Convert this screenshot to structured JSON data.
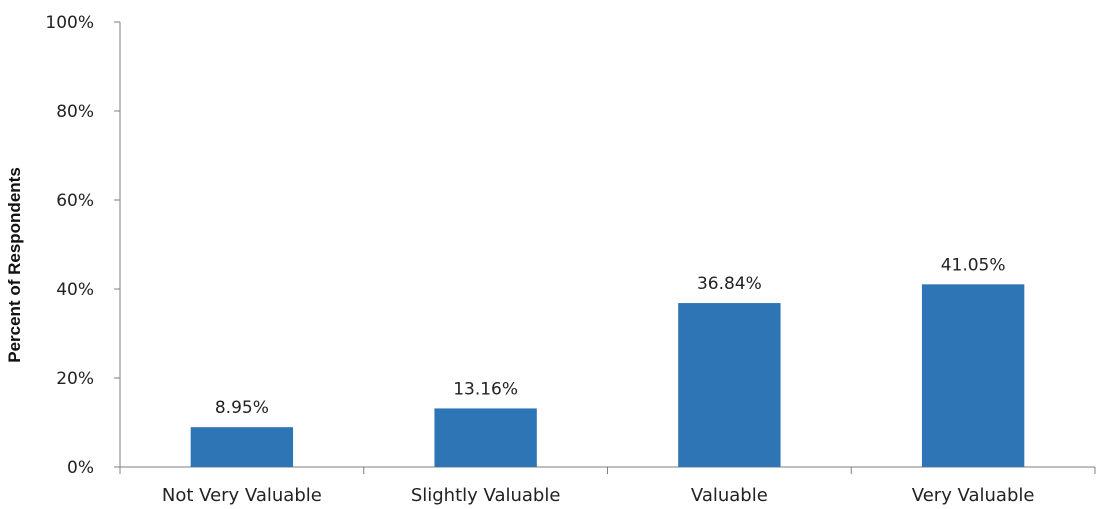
{
  "chart_data": {
    "type": "bar",
    "title": "",
    "xlabel": "",
    "ylabel": "Percent of Respondents",
    "categories": [
      "Not Very Valuable",
      "Slightly Valuable",
      "Valuable",
      "Very Valuable"
    ],
    "values": [
      8.95,
      13.16,
      36.84,
      41.05
    ],
    "data_labels": [
      "8.95%",
      "13.16%",
      "36.84%",
      "41.05%"
    ],
    "ylim": [
      0,
      100
    ],
    "y_ticks": [
      0,
      20,
      40,
      60,
      80,
      100
    ],
    "y_tick_labels": [
      "0%",
      "20%",
      "40%",
      "60%",
      "80%",
      "100%"
    ],
    "grid": false,
    "legend": "none",
    "bar_color": "#2E75B6"
  }
}
